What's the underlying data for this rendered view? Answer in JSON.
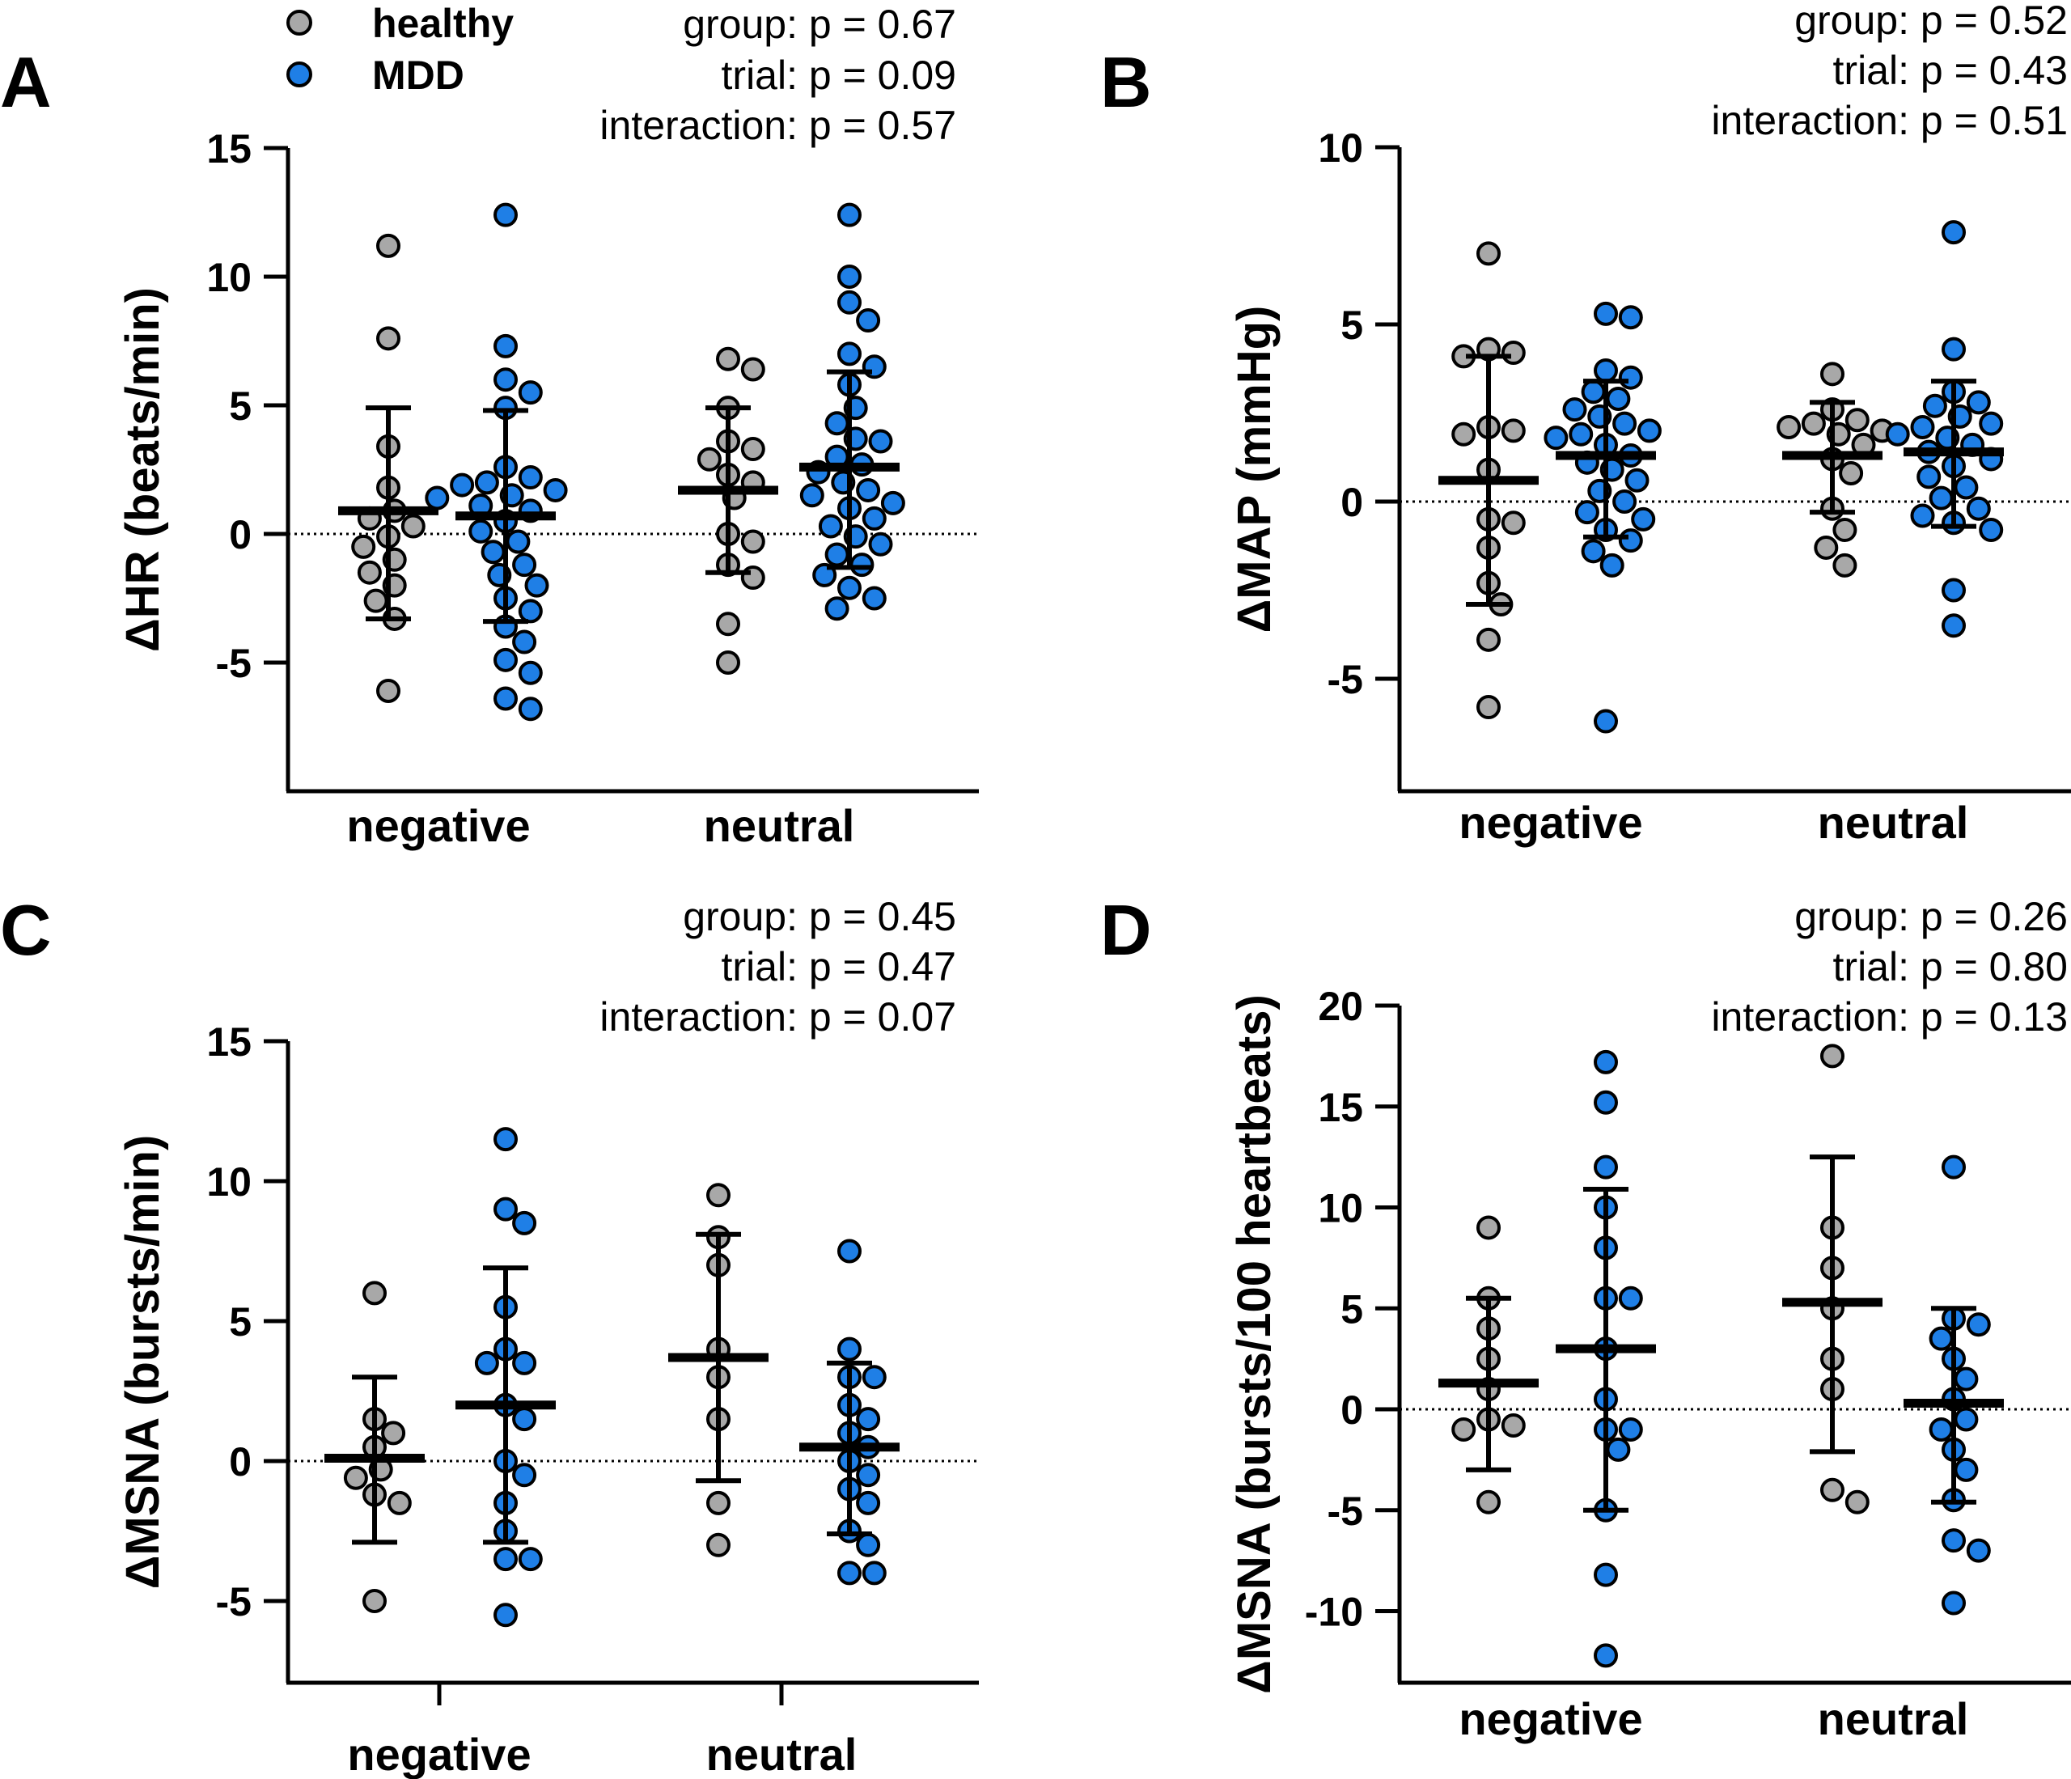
{
  "legend": {
    "items": [
      {
        "label": "healthy",
        "color": "#a8a8a8"
      },
      {
        "label": "MDD",
        "color": "#1f7fe6"
      }
    ]
  },
  "chart_data": [
    {
      "panel": "A",
      "type": "scatter",
      "ylabel": "ΔHR (beats/min)",
      "ylim": [
        -10,
        15
      ],
      "yticks": [
        "15",
        "10",
        "5",
        "0",
        "-5"
      ],
      "categories": [
        "negative",
        "neutral"
      ],
      "stats": [
        "group: p = 0.67",
        "trial: p = 0.09",
        "interaction: p = 0.57"
      ],
      "series": [
        {
          "name": "healthy",
          "color": "#a8a8a8",
          "groups": [
            {
              "category": "negative",
              "mean": 0.9,
              "sd_low": -3.3,
              "sd_high": 4.9,
              "points": [
                11.2,
                7.6,
                3.4,
                1.8,
                0.9,
                0.6,
                0.3,
                -0.1,
                -0.5,
                -1.0,
                -1.5,
                -2.0,
                -2.6,
                -3.3,
                -6.1
              ]
            },
            {
              "category": "neutral",
              "mean": 1.7,
              "sd_low": -1.5,
              "sd_high": 4.9,
              "points": [
                6.8,
                6.4,
                4.9,
                3.6,
                3.3,
                2.9,
                2.3,
                2.0,
                1.4,
                0.0,
                -0.3,
                -1.2,
                -1.7,
                -3.5,
                -5.0
              ]
            }
          ]
        },
        {
          "name": "MDD",
          "color": "#1f7fe6",
          "groups": [
            {
              "category": "negative",
              "mean": 0.7,
              "sd_low": -3.4,
              "sd_high": 4.8,
              "points": [
                12.4,
                7.3,
                6.0,
                5.5,
                4.9,
                2.6,
                2.2,
                2.0,
                1.9,
                1.7,
                1.5,
                1.4,
                1.1,
                0.9,
                0.5,
                0.1,
                -0.3,
                -0.7,
                -1.2,
                -1.6,
                -2.0,
                -2.5,
                -3.0,
                -3.6,
                -4.2,
                -4.9,
                -5.4,
                -6.4,
                -6.8
              ]
            },
            {
              "category": "neutral",
              "mean": 2.6,
              "sd_low": -1.3,
              "sd_high": 6.3,
              "points": [
                12.4,
                10.0,
                9.0,
                8.3,
                7.0,
                6.5,
                5.8,
                4.9,
                4.3,
                3.7,
                3.6,
                3.0,
                2.7,
                2.4,
                2.0,
                1.7,
                1.5,
                1.2,
                1.0,
                0.6,
                0.3,
                -0.1,
                -0.4,
                -0.8,
                -1.2,
                -1.6,
                -2.1,
                -2.5,
                -2.9
              ]
            }
          ]
        }
      ]
    },
    {
      "panel": "B",
      "type": "scatter",
      "ylabel": "ΔMAP (mmHg)",
      "ylim": [
        -8,
        10
      ],
      "yticks": [
        "10",
        "5",
        "0",
        "-5"
      ],
      "categories": [
        "negative",
        "neutral"
      ],
      "stats": [
        "group: p = 0.52",
        "trial: p = 0.43",
        "interaction: p = 0.51"
      ],
      "series": [
        {
          "name": "healthy",
          "color": "#a8a8a8",
          "groups": [
            {
              "category": "negative",
              "mean": 0.6,
              "sd_low": -2.9,
              "sd_high": 4.1,
              "points": [
                7.0,
                4.3,
                4.2,
                4.1,
                2.1,
                2.0,
                1.9,
                0.9,
                -0.5,
                -0.6,
                -1.3,
                -2.3,
                -2.9,
                -3.9,
                -5.8
              ]
            },
            {
              "category": "neutral",
              "mean": 1.3,
              "sd_low": -0.3,
              "sd_high": 2.8,
              "points": [
                3.6,
                2.6,
                2.3,
                2.2,
                2.1,
                2.0,
                1.9,
                1.6,
                1.2,
                0.8,
                -0.2,
                -0.8,
                -1.3,
                -1.8
              ]
            }
          ]
        },
        {
          "name": "MDD",
          "color": "#1f7fe6",
          "groups": [
            {
              "category": "negative",
              "mean": 1.3,
              "sd_low": -1.0,
              "sd_high": 3.4,
              "points": [
                5.3,
                5.2,
                3.7,
                3.5,
                3.1,
                2.9,
                2.6,
                2.4,
                2.2,
                2.0,
                1.9,
                1.8,
                1.6,
                1.3,
                1.1,
                0.9,
                0.6,
                0.3,
                0.0,
                -0.3,
                -0.5,
                -0.8,
                -1.1,
                -1.4,
                -1.8,
                -6.2
              ]
            },
            {
              "category": "neutral",
              "mean": 1.4,
              "sd_low": -0.7,
              "sd_high": 3.4,
              "points": [
                7.6,
                4.3,
                3.1,
                2.8,
                2.7,
                2.4,
                2.2,
                2.1,
                1.9,
                1.8,
                1.6,
                1.4,
                1.2,
                1.0,
                0.7,
                0.4,
                0.1,
                -0.2,
                -0.4,
                -0.6,
                -0.8,
                -2.5,
                -3.5
              ]
            }
          ]
        }
      ]
    },
    {
      "panel": "C",
      "type": "scatter",
      "ylabel": "ΔMSNA (bursts/min)",
      "ylim": [
        -8,
        15
      ],
      "yticks": [
        "15",
        "10",
        "5",
        "0",
        "-5"
      ],
      "categories": [
        "negative",
        "neutral"
      ],
      "stats": [
        "group: p = 0.45",
        "trial: p = 0.47",
        "interaction: p = 0.07"
      ],
      "series": [
        {
          "name": "healthy",
          "color": "#a8a8a8",
          "groups": [
            {
              "category": "negative",
              "mean": 0.1,
              "sd_low": -2.9,
              "sd_high": 3.0,
              "points": [
                6.0,
                1.5,
                1.0,
                0.5,
                -0.3,
                -0.6,
                -1.2,
                -1.5,
                -5.0
              ]
            },
            {
              "category": "neutral",
              "mean": 3.7,
              "sd_low": -0.7,
              "sd_high": 8.1,
              "points": [
                9.5,
                8.0,
                7.0,
                4.0,
                3.0,
                1.5,
                -1.5,
                -3.0
              ]
            }
          ]
        },
        {
          "name": "MDD",
          "color": "#1f7fe6",
          "groups": [
            {
              "category": "negative",
              "mean": 2.0,
              "sd_low": -2.9,
              "sd_high": 6.9,
              "points": [
                11.5,
                9.0,
                8.5,
                5.5,
                4.0,
                3.5,
                3.5,
                2.0,
                1.5,
                0.0,
                -0.5,
                -1.5,
                -2.5,
                -3.5,
                -3.5,
                -5.5
              ]
            },
            {
              "category": "neutral",
              "mean": 0.5,
              "sd_low": -2.6,
              "sd_high": 3.5,
              "points": [
                7.5,
                4.0,
                3.0,
                3.0,
                2.0,
                1.5,
                1.0,
                0.5,
                0.0,
                -0.5,
                -1.0,
                -1.5,
                -2.5,
                -3.0,
                -4.0,
                -4.0
              ]
            }
          ]
        }
      ]
    },
    {
      "panel": "D",
      "type": "scatter",
      "ylabel": "ΔMSNA (bursts/100 heartbeats)",
      "ylim": [
        -15,
        20
      ],
      "yticks": [
        "20",
        "15",
        "10",
        "5",
        "0",
        "-5",
        "-10"
      ],
      "categories": [
        "negative",
        "neutral"
      ],
      "stats": [
        "group: p = 0.26",
        "trial: p = 0.80",
        "interaction: p = 0.13"
      ],
      "series": [
        {
          "name": "healthy",
          "color": "#a8a8a8",
          "groups": [
            {
              "category": "negative",
              "mean": 1.3,
              "sd_low": -3.0,
              "sd_high": 5.5,
              "points": [
                9.0,
                5.5,
                4.0,
                2.5,
                1.0,
                -0.5,
                -0.8,
                -1.0,
                -4.6
              ]
            },
            {
              "category": "neutral",
              "mean": 5.3,
              "sd_low": -2.1,
              "sd_high": 12.5,
              "points": [
                17.5,
                9.0,
                7.0,
                5.0,
                2.5,
                1.0,
                -4.0,
                -4.6
              ]
            }
          ]
        },
        {
          "name": "MDD",
          "color": "#1f7fe6",
          "groups": [
            {
              "category": "negative",
              "mean": 3.0,
              "sd_low": -5.0,
              "sd_high": 10.9,
              "points": [
                17.2,
                15.2,
                12.0,
                10.0,
                8.0,
                5.5,
                5.5,
                3.0,
                0.5,
                -1.0,
                -1.0,
                -2.0,
                -5.0,
                -8.2,
                -12.2
              ]
            },
            {
              "category": "neutral",
              "mean": 0.3,
              "sd_low": -4.6,
              "sd_high": 5.0,
              "points": [
                12.0,
                4.5,
                4.2,
                3.5,
                2.5,
                1.5,
                0.5,
                -0.5,
                -1.0,
                -2.0,
                -3.0,
                -4.5,
                -6.5,
                -7.0,
                -9.6
              ]
            }
          ]
        }
      ]
    }
  ]
}
